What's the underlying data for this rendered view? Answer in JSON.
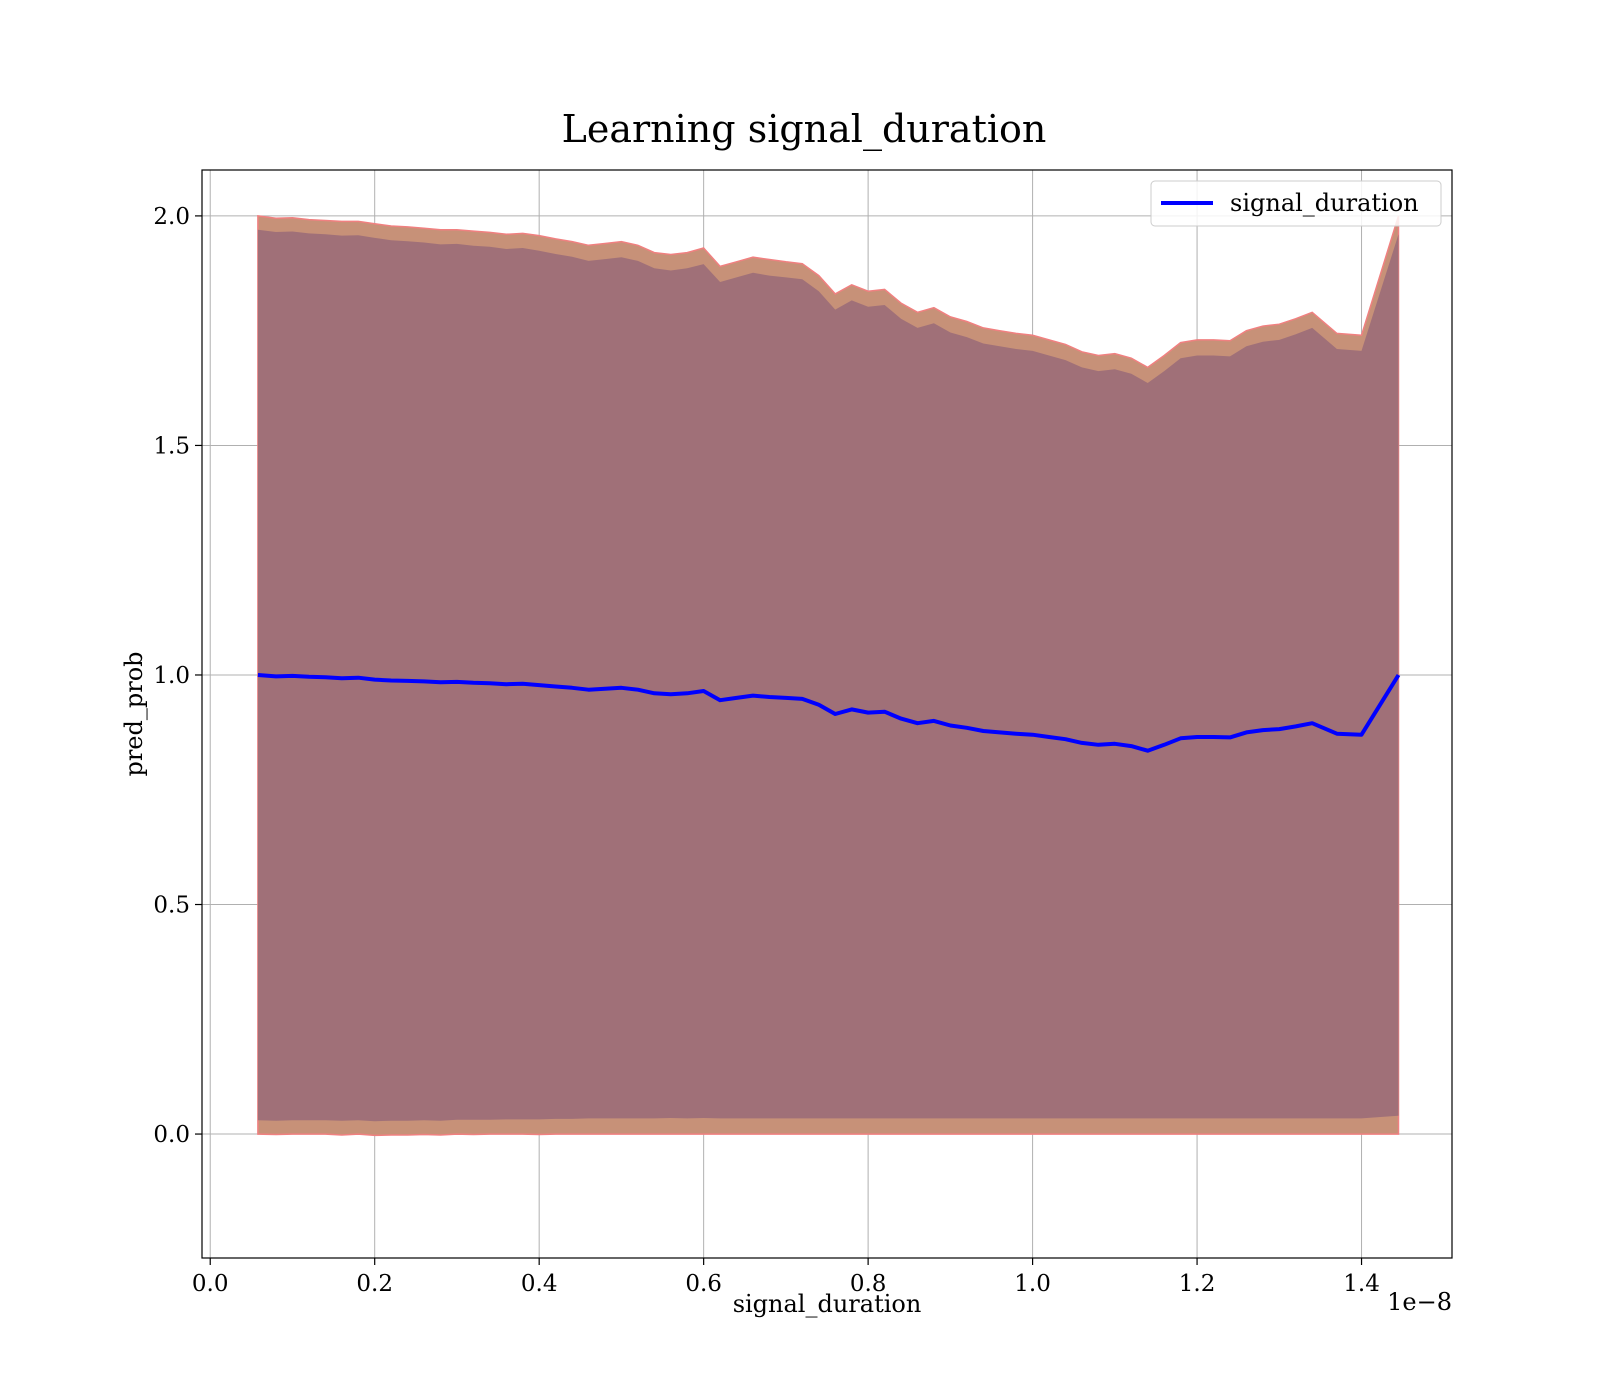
{
  "chart_data": {
    "type": "line",
    "title": "Learning signal_duration",
    "xlabel": "signal_duration",
    "ylabel": "pred_prob",
    "x_offset_text": "1e−8",
    "x_ticks": [
      "0.0",
      "0.2",
      "0.4",
      "0.6",
      "0.8",
      "1.0",
      "1.2",
      "1.4"
    ],
    "x_tick_values": [
      0.0,
      0.2,
      0.4,
      0.6,
      0.8,
      1.0,
      1.2,
      1.4
    ],
    "y_ticks": [
      "0.0",
      "0.5",
      "1.0",
      "1.5",
      "2.0"
    ],
    "y_tick_values": [
      0.0,
      0.5,
      1.0,
      1.5,
      2.0
    ],
    "xlim": [
      -0.01,
      1.51
    ],
    "ylim": [
      -0.27,
      2.1
    ],
    "x_scale_note": "x values shown in units of 1e-8",
    "grid": true,
    "legend": {
      "position": "top-right",
      "entries": [
        "signal_duration"
      ]
    },
    "colors": {
      "line": "#0000ff",
      "band_outer": "#c79178",
      "band_outer_edge": "#f08080",
      "band_inner": "#a07078"
    },
    "series": [
      {
        "name": "signal_duration",
        "x": [
          0.058,
          0.08,
          0.1,
          0.12,
          0.14,
          0.16,
          0.18,
          0.2,
          0.22,
          0.24,
          0.26,
          0.28,
          0.3,
          0.32,
          0.34,
          0.36,
          0.38,
          0.4,
          0.42,
          0.44,
          0.46,
          0.48,
          0.5,
          0.52,
          0.54,
          0.56,
          0.58,
          0.6,
          0.62,
          0.64,
          0.66,
          0.68,
          0.7,
          0.72,
          0.74,
          0.76,
          0.78,
          0.8,
          0.82,
          0.84,
          0.86,
          0.88,
          0.9,
          0.92,
          0.94,
          0.96,
          0.98,
          1.0,
          1.02,
          1.04,
          1.06,
          1.08,
          1.1,
          1.12,
          1.14,
          1.16,
          1.18,
          1.2,
          1.22,
          1.24,
          1.26,
          1.28,
          1.3,
          1.32,
          1.34,
          1.37,
          1.4,
          1.445
        ],
        "values": [
          1.0,
          0.997,
          0.998,
          0.996,
          0.995,
          0.993,
          0.994,
          0.99,
          0.988,
          0.987,
          0.986,
          0.984,
          0.985,
          0.983,
          0.982,
          0.98,
          0.981,
          0.978,
          0.975,
          0.972,
          0.968,
          0.97,
          0.972,
          0.968,
          0.96,
          0.958,
          0.96,
          0.965,
          0.945,
          0.95,
          0.955,
          0.952,
          0.95,
          0.948,
          0.935,
          0.915,
          0.925,
          0.918,
          0.92,
          0.905,
          0.895,
          0.9,
          0.89,
          0.885,
          0.878,
          0.875,
          0.872,
          0.87,
          0.865,
          0.86,
          0.852,
          0.848,
          0.85,
          0.845,
          0.835,
          0.848,
          0.862,
          0.865,
          0.865,
          0.864,
          0.875,
          0.88,
          0.882,
          0.888,
          0.895,
          0.872,
          0.87,
          1.0
        ],
        "band_outer_upper": [
          2.0,
          1.995,
          1.996,
          1.992,
          1.99,
          1.988,
          1.988,
          1.983,
          1.978,
          1.976,
          1.973,
          1.97,
          1.97,
          1.967,
          1.964,
          1.96,
          1.962,
          1.957,
          1.95,
          1.944,
          1.936,
          1.94,
          1.944,
          1.936,
          1.92,
          1.916,
          1.92,
          1.93,
          1.89,
          1.9,
          1.91,
          1.905,
          1.9,
          1.896,
          1.87,
          1.83,
          1.85,
          1.836,
          1.84,
          1.81,
          1.79,
          1.8,
          1.78,
          1.77,
          1.756,
          1.75,
          1.744,
          1.74,
          1.73,
          1.72,
          1.704,
          1.696,
          1.7,
          1.69,
          1.67,
          1.696,
          1.724,
          1.73,
          1.73,
          1.728,
          1.75,
          1.76,
          1.764,
          1.776,
          1.79,
          1.744,
          1.74,
          2.0
        ],
        "band_outer_lower": [
          0.0,
          -0.001,
          0.0,
          0.0,
          0.0,
          -0.002,
          0.0,
          -0.003,
          -0.002,
          -0.002,
          -0.001,
          -0.002,
          0.0,
          -0.001,
          0.0,
          0.0,
          0.0,
          -0.001,
          0.0,
          0.0,
          0.0,
          0.0,
          0.0,
          0.0,
          0.0,
          0.0,
          0.0,
          0.0,
          0.0,
          0.0,
          0.0,
          0.0,
          0.0,
          0.0,
          0.0,
          0.0,
          0.0,
          0.0,
          0.0,
          0.0,
          0.0,
          0.0,
          0.0,
          0.0,
          0.0,
          0.0,
          0.0,
          0.0,
          0.0,
          0.0,
          0.0,
          0.0,
          0.0,
          0.0,
          0.0,
          0.0,
          0.0,
          0.0,
          0.0,
          0.0,
          0.0,
          0.0,
          0.0,
          0.0,
          0.0,
          0.0,
          0.0,
          0.0
        ],
        "band_inner_upper": [
          1.97,
          1.965,
          1.966,
          1.962,
          1.96,
          1.957,
          1.958,
          1.952,
          1.947,
          1.945,
          1.942,
          1.938,
          1.939,
          1.935,
          1.933,
          1.928,
          1.93,
          1.924,
          1.917,
          1.911,
          1.902,
          1.906,
          1.91,
          1.902,
          1.886,
          1.881,
          1.886,
          1.895,
          1.856,
          1.866,
          1.876,
          1.87,
          1.866,
          1.862,
          1.836,
          1.796,
          1.816,
          1.802,
          1.806,
          1.776,
          1.756,
          1.766,
          1.746,
          1.736,
          1.722,
          1.716,
          1.71,
          1.706,
          1.696,
          1.686,
          1.67,
          1.662,
          1.666,
          1.656,
          1.636,
          1.662,
          1.69,
          1.696,
          1.696,
          1.694,
          1.716,
          1.726,
          1.73,
          1.742,
          1.756,
          1.71,
          1.706,
          1.96
        ],
        "band_inner_lower": [
          0.03,
          0.029,
          0.03,
          0.03,
          0.03,
          0.029,
          0.03,
          0.028,
          0.029,
          0.029,
          0.03,
          0.029,
          0.031,
          0.031,
          0.031,
          0.032,
          0.032,
          0.032,
          0.033,
          0.033,
          0.034,
          0.034,
          0.034,
          0.034,
          0.034,
          0.035,
          0.034,
          0.035,
          0.034,
          0.034,
          0.034,
          0.034,
          0.034,
          0.034,
          0.034,
          0.034,
          0.034,
          0.034,
          0.034,
          0.034,
          0.034,
          0.034,
          0.034,
          0.034,
          0.034,
          0.034,
          0.034,
          0.034,
          0.034,
          0.034,
          0.034,
          0.034,
          0.034,
          0.034,
          0.034,
          0.034,
          0.034,
          0.034,
          0.034,
          0.034,
          0.034,
          0.034,
          0.034,
          0.034,
          0.034,
          0.034,
          0.034,
          0.04
        ]
      }
    ]
  }
}
